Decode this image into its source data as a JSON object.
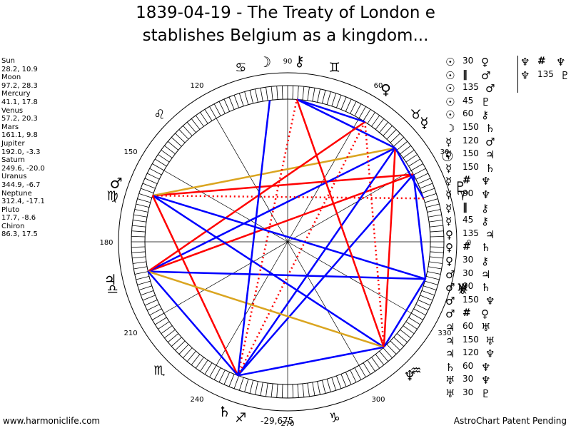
{
  "title": {
    "line1": "1839-04-19 - The Treaty of London e",
    "line2": "stablishes Belgium as a kingdom..."
  },
  "planets": [
    {
      "name": "Sun",
      "values": "28.2, 10.9"
    },
    {
      "name": "Moon",
      "values": "97.2, 28.3"
    },
    {
      "name": "Mercury",
      "values": "41.1, 17.8"
    },
    {
      "name": "Venus",
      "values": "57.2, 20.3"
    },
    {
      "name": "Mars",
      "values": "161.1, 9.8"
    },
    {
      "name": "Jupiter",
      "values": "192.0, -3.3"
    },
    {
      "name": "Saturn",
      "values": "249.6, -20.0"
    },
    {
      "name": "Uranus",
      "values": "344.9, -6.7"
    },
    {
      "name": "Neptune",
      "values": "312.4, -17.1"
    },
    {
      "name": "Pluto",
      "values": "17.7, -8.6"
    },
    {
      "name": "Chiron",
      "values": "86.3, 17.5"
    }
  ],
  "aspects": [
    {
      "p1": "☉",
      "deg": "30",
      "p2": "♀"
    },
    {
      "p1": "☉",
      "deg": "‖",
      "p2": "♂"
    },
    {
      "p1": "☉",
      "deg": "135",
      "p2": "♂"
    },
    {
      "p1": "☉",
      "deg": "45",
      "p2": "♇"
    },
    {
      "p1": "☉",
      "deg": "60",
      "p2": "⚷"
    },
    {
      "p1": "☽",
      "deg": "150",
      "p2": "♄"
    },
    {
      "p1": "☿",
      "deg": "120",
      "p2": "♂"
    },
    {
      "p1": "☿",
      "deg": "150",
      "p2": "♃"
    },
    {
      "p1": "☿",
      "deg": "150",
      "p2": "♄"
    },
    {
      "p1": "☿",
      "deg": "#",
      "p2": "♆"
    },
    {
      "p1": "☿",
      "deg": "90",
      "p2": "♆"
    },
    {
      "p1": "☿",
      "deg": "‖",
      "p2": "⚷"
    },
    {
      "p1": "☿",
      "deg": "45",
      "p2": "⚷"
    },
    {
      "p1": "♀",
      "deg": "135",
      "p2": "♃"
    },
    {
      "p1": "♀",
      "deg": "#",
      "p2": "♄"
    },
    {
      "p1": "♀",
      "deg": "30",
      "p2": "⚷"
    },
    {
      "p1": "♂",
      "deg": "30",
      "p2": "♃"
    },
    {
      "p1": "♂",
      "deg": "90",
      "p2": "♄"
    },
    {
      "p1": "♂",
      "deg": "150",
      "p2": "♆"
    },
    {
      "p1": "♂",
      "deg": "#",
      "p2": "♀"
    },
    {
      "p1": "♃",
      "deg": "60",
      "p2": "♅"
    },
    {
      "p1": "♃",
      "deg": "150",
      "p2": "♅"
    },
    {
      "p1": "♃",
      "deg": "120",
      "p2": "♆"
    },
    {
      "p1": "♄",
      "deg": "60",
      "p2": "♆"
    },
    {
      "p1": "♅",
      "deg": "30",
      "p2": "♆"
    },
    {
      "p1": "♅",
      "deg": "30",
      "p2": "♇"
    }
  ],
  "aspects_col2": [
    {
      "p1": "♆",
      "deg": "#",
      "p2": "♆"
    },
    {
      "p1": "♆",
      "deg": "135",
      "p2": "♇"
    }
  ],
  "chart_data": {
    "type": "scatter",
    "title": "1839-04-19 - The Treaty of London establishes Belgium as a kingdom...",
    "center_label": "-29,675",
    "degree_labels": [
      "0",
      "30",
      "60",
      "90",
      "120",
      "150",
      "180",
      "210",
      "240",
      "270",
      "300",
      "330"
    ],
    "planets": [
      {
        "name": "Sun",
        "symbol": "☉",
        "longitude": 28.2,
        "declination": 10.9
      },
      {
        "name": "Moon",
        "symbol": "☽",
        "longitude": 97.2,
        "declination": 28.3
      },
      {
        "name": "Mercury",
        "symbol": "☿",
        "longitude": 41.1,
        "declination": 17.8
      },
      {
        "name": "Venus",
        "symbol": "♀",
        "longitude": 57.2,
        "declination": 20.3
      },
      {
        "name": "Mars",
        "symbol": "♂",
        "longitude": 161.1,
        "declination": 9.8
      },
      {
        "name": "Jupiter",
        "symbol": "♃",
        "longitude": 192.0,
        "declination": -3.3
      },
      {
        "name": "Saturn",
        "symbol": "♄",
        "longitude": 249.6,
        "declination": -20.0
      },
      {
        "name": "Uranus",
        "symbol": "♅",
        "longitude": 344.9,
        "declination": -6.7
      },
      {
        "name": "Neptune",
        "symbol": "♆",
        "longitude": 312.4,
        "declination": -17.1
      },
      {
        "name": "Pluto",
        "symbol": "♇",
        "longitude": 17.7,
        "declination": -8.6
      },
      {
        "name": "Chiron",
        "symbol": "⚷",
        "longitude": 86.3,
        "declination": 17.5
      }
    ],
    "sign_glyphs": [
      "♈",
      "♉",
      "♊",
      "♋",
      "♌",
      "♍",
      "♎",
      "♏",
      "♐",
      "♑",
      "♒",
      "♓"
    ],
    "aspect_lines": [
      {
        "from": "Sun",
        "to": "Saturn",
        "color": "#0000ff",
        "style": "solid"
      },
      {
        "from": "Sun",
        "to": "Jupiter",
        "color": "#ff0000",
        "style": "solid"
      },
      {
        "from": "Sun",
        "to": "Mars",
        "color": "#ff0000",
        "style": "solid"
      },
      {
        "from": "Sun",
        "to": "Uranus",
        "color": "#0000ff",
        "style": "solid"
      },
      {
        "from": "Mercury",
        "to": "Mars",
        "color": "#daa520",
        "style": "solid"
      },
      {
        "from": "Mercury",
        "to": "Jupiter",
        "color": "#0000ff",
        "style": "solid"
      },
      {
        "from": "Mercury",
        "to": "Saturn",
        "color": "#0000ff",
        "style": "solid"
      },
      {
        "from": "Mercury",
        "to": "Neptune",
        "color": "#ff0000",
        "style": "solid"
      },
      {
        "from": "Mercury",
        "to": "Chiron",
        "color": "#0000ff",
        "style": "solid"
      },
      {
        "from": "Mercury",
        "to": "Pluto",
        "color": "#0000ff",
        "style": "solid"
      },
      {
        "from": "Venus",
        "to": "Neptune",
        "color": "#ff0000",
        "style": "dotted"
      },
      {
        "from": "Venus",
        "to": "Jupiter",
        "color": "#ff0000",
        "style": "solid"
      },
      {
        "from": "Venus",
        "to": "Saturn",
        "color": "#ff0000",
        "style": "dotted"
      },
      {
        "from": "Venus",
        "to": "Chiron",
        "color": "#0000ff",
        "style": "solid"
      },
      {
        "from": "Mars",
        "to": "Uranus",
        "color": "#0000ff",
        "style": "solid"
      },
      {
        "from": "Mars",
        "to": "Neptune",
        "color": "#0000ff",
        "style": "solid"
      },
      {
        "from": "Mars",
        "to": "Saturn",
        "color": "#ff0000",
        "style": "solid"
      },
      {
        "from": "Mars",
        "to": "Pluto",
        "color": "#ff0000",
        "style": "dotted"
      },
      {
        "from": "Jupiter",
        "to": "Uranus",
        "color": "#0000ff",
        "style": "solid"
      },
      {
        "from": "Jupiter",
        "to": "Neptune",
        "color": "#daa520",
        "style": "solid"
      },
      {
        "from": "Jupiter",
        "to": "Saturn",
        "color": "#0000ff",
        "style": "solid"
      },
      {
        "from": "Saturn",
        "to": "Neptune",
        "color": "#0000ff",
        "style": "solid"
      },
      {
        "from": "Saturn",
        "to": "Chiron",
        "color": "#ff0000",
        "style": "dotted"
      },
      {
        "from": "Uranus",
        "to": "Neptune",
        "color": "#0000ff",
        "style": "solid"
      },
      {
        "from": "Chiron",
        "to": "Neptune",
        "color": "#ff0000",
        "style": "solid"
      },
      {
        "from": "Moon",
        "to": "Saturn",
        "color": "#0000ff",
        "style": "solid"
      }
    ]
  },
  "footer": {
    "left": "www.harmoniclife.com",
    "center": "-29,675",
    "right": "AstroChart Patent Pending"
  }
}
